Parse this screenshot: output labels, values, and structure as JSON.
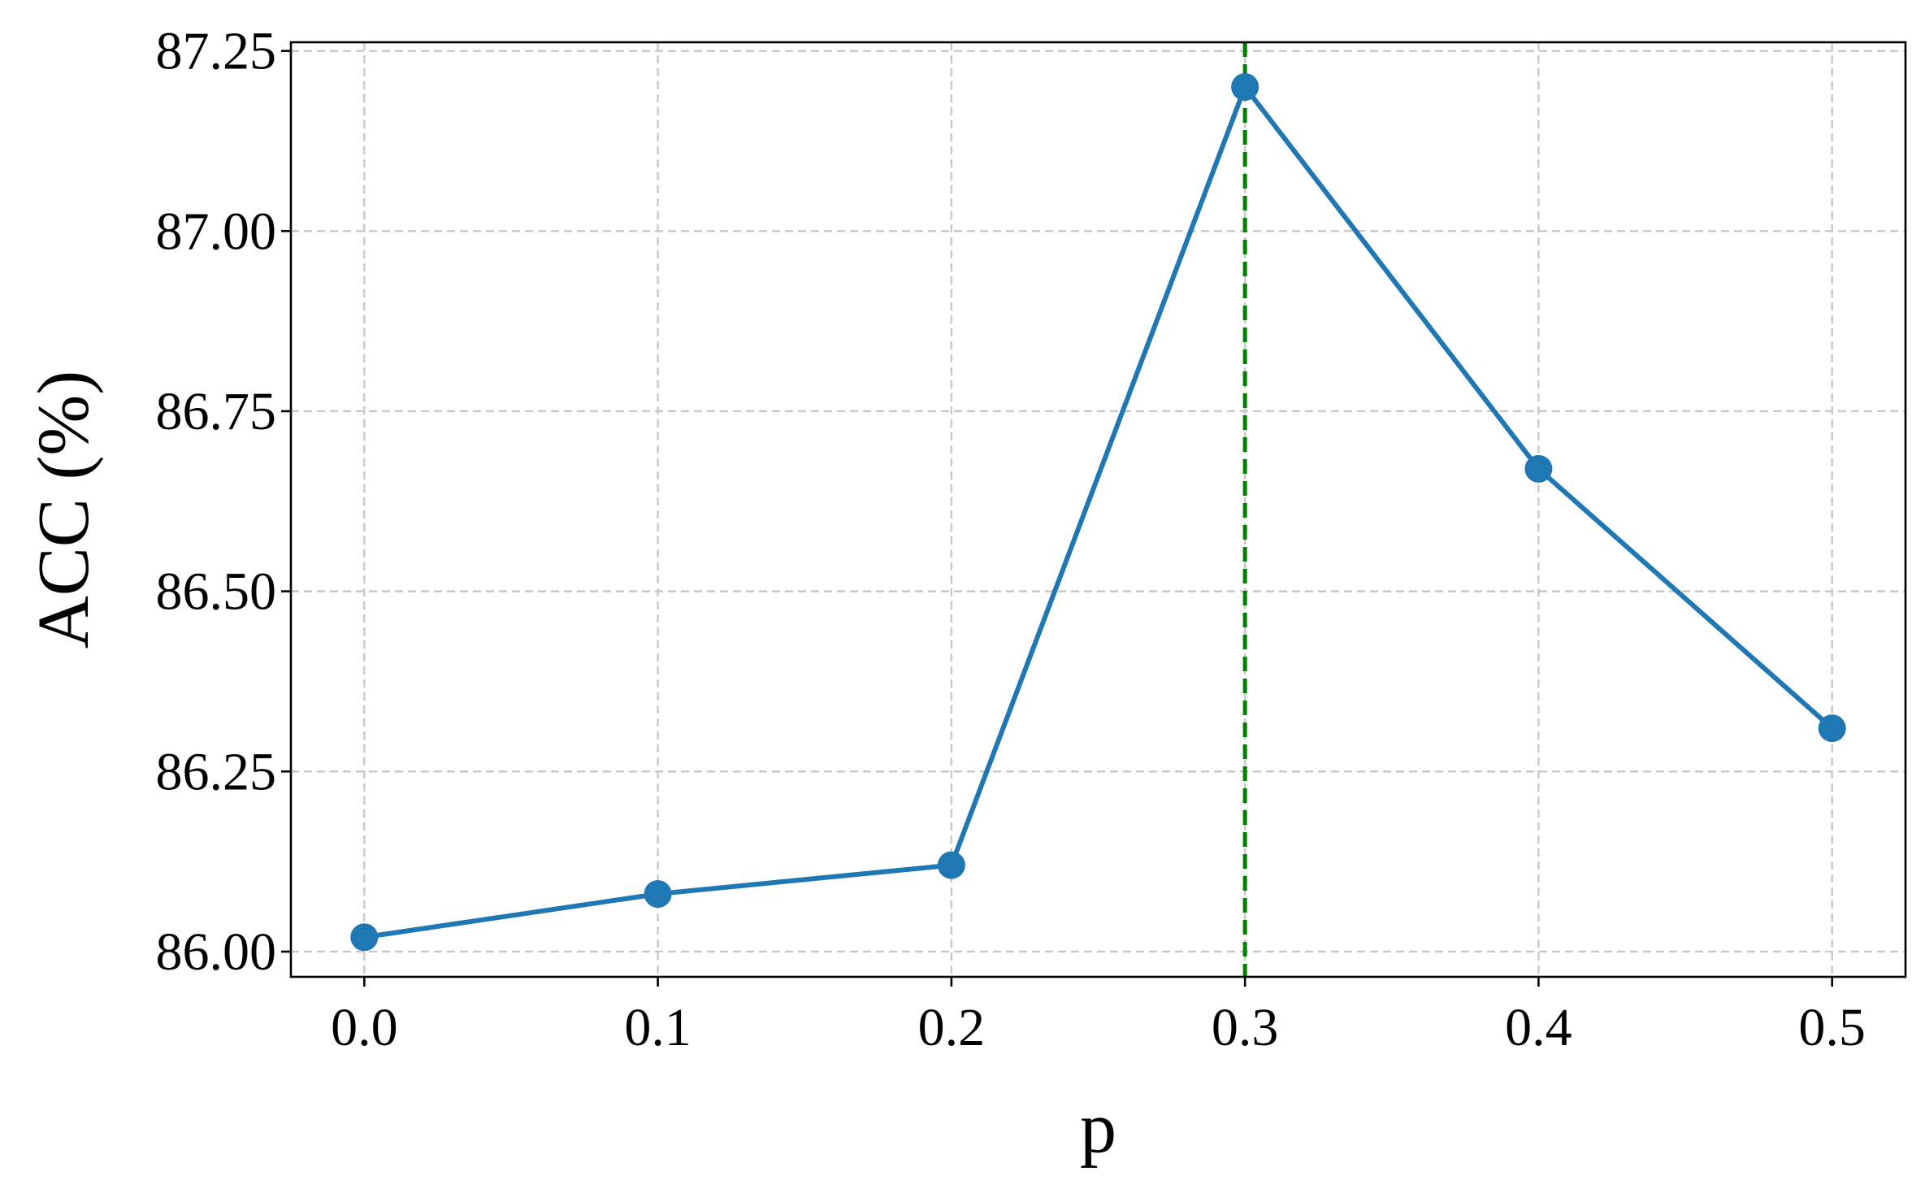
{
  "chart_data": {
    "type": "line",
    "title": "",
    "xlabel": "p",
    "ylabel": "ACC (%)",
    "xlim": [
      -0.025,
      0.525
    ],
    "ylim": [
      85.965,
      87.262
    ],
    "xticks": [
      0.0,
      0.1,
      0.2,
      0.3,
      0.4,
      0.5
    ],
    "xtick_labels": [
      "0.0",
      "0.1",
      "0.2",
      "0.3",
      "0.4",
      "0.5"
    ],
    "yticks": [
      86.0,
      86.25,
      86.5,
      86.75,
      87.0,
      87.25
    ],
    "ytick_labels": [
      "86.00",
      "86.25",
      "86.50",
      "86.75",
      "87.00",
      "87.25"
    ],
    "grid": true,
    "series": [
      {
        "x": [
          0.0,
          0.1,
          0.2,
          0.3,
          0.4,
          0.5
        ],
        "y": [
          86.02,
          86.08,
          86.12,
          87.2,
          86.67,
          86.31
        ],
        "color": "#1f77b4",
        "marker": "circle"
      }
    ],
    "vline": {
      "x": 0.3,
      "color": "#008000",
      "style": "dashed"
    }
  }
}
